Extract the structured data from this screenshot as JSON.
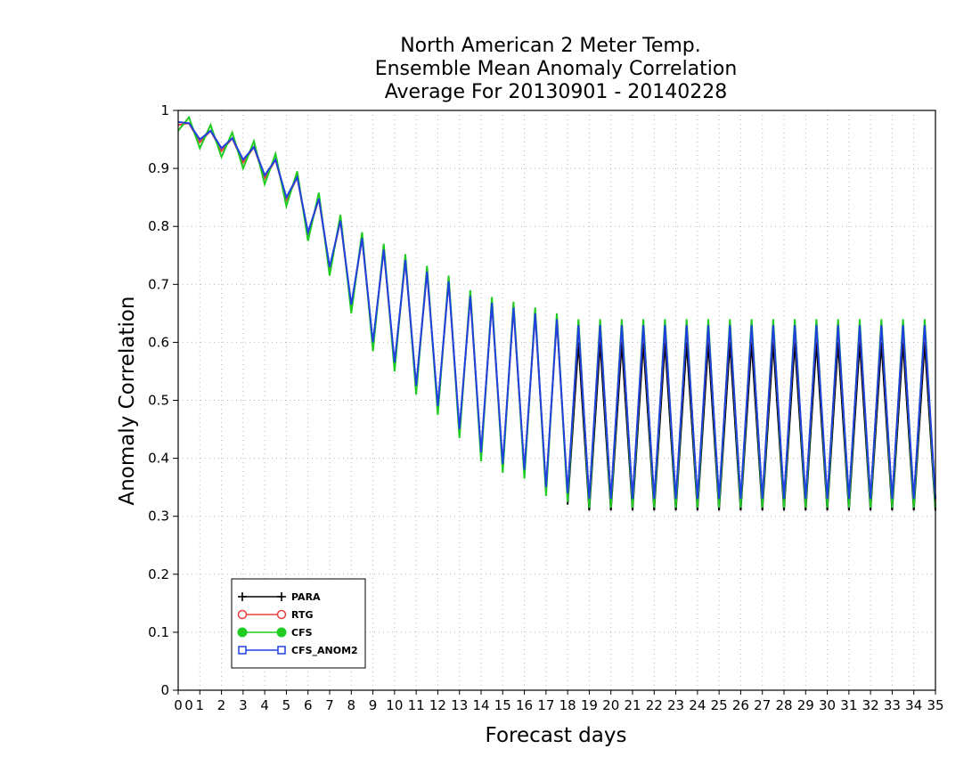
{
  "chart_data": {
    "type": "line",
    "title": [
      "North American 2 Meter Temp.",
      "Ensemble Mean Anomaly Correlation",
      "Average For 20130901 - 20140228"
    ],
    "xlabel": "Forecast days",
    "ylabel": "Anomaly Correlation",
    "xlim": [
      0,
      35
    ],
    "ylim": [
      0,
      1
    ],
    "x_ticks": [
      "0",
      "0",
      "1",
      "2",
      "3",
      "4",
      "5",
      "6",
      "7",
      "8",
      "9",
      "10",
      "11",
      "12",
      "13",
      "14",
      "15",
      "16",
      "17",
      "18",
      "19",
      "20",
      "21",
      "22",
      "23",
      "24",
      "25",
      "26",
      "27",
      "28",
      "29",
      "30",
      "31",
      "32",
      "33",
      "34",
      "35"
    ],
    "y_ticks": [
      "0",
      "0.1",
      "0.2",
      "0.3",
      "0.4",
      "0.5",
      "0.6",
      "0.7",
      "0.8",
      "0.9",
      "1"
    ],
    "grid": true,
    "legend_position": "bottom-left",
    "base_envelope": {
      "x": [
        0,
        0.5,
        1,
        1.5,
        2,
        2.5,
        3,
        3.5,
        4,
        4.5,
        5,
        5.5,
        6,
        6.5,
        7,
        7.5,
        8,
        8.5,
        9,
        9.5,
        10,
        10.5,
        11,
        11.5,
        12,
        12.5,
        13,
        13.5,
        14,
        14.5,
        15,
        15.5,
        16,
        16.5,
        17,
        17.5,
        18,
        18.5,
        19,
        19.5,
        20,
        20.5,
        21,
        21.5,
        22,
        22.5,
        23,
        23.5,
        24,
        24.5,
        25,
        25.5,
        26,
        26.5,
        27,
        27.5,
        28,
        28.5,
        29,
        29.5,
        30,
        30.5,
        31,
        31.5,
        32,
        32.5,
        33,
        33.5,
        34,
        34.5,
        35
      ],
      "y": [
        0.98,
        0.978,
        0.95,
        0.965,
        0.935,
        0.952,
        0.915,
        0.937,
        0.888,
        0.915,
        0.85,
        0.885,
        0.79,
        0.848,
        0.73,
        0.81,
        0.665,
        0.78,
        0.6,
        0.76,
        0.565,
        0.742,
        0.525,
        0.722,
        0.49,
        0.705,
        0.45,
        0.68,
        0.41,
        0.668,
        0.39,
        0.66,
        0.38,
        0.65,
        0.35,
        0.64,
        0.34,
        0.63,
        0.33,
        0.63,
        0.33,
        0.63,
        0.33,
        0.63,
        0.33,
        0.63,
        0.33,
        0.63,
        0.33,
        0.63,
        0.33,
        0.63,
        0.33,
        0.63,
        0.33,
        0.63,
        0.33,
        0.63,
        0.33,
        0.63,
        0.33,
        0.63,
        0.33,
        0.63,
        0.33,
        0.63,
        0.33,
        0.63,
        0.33,
        0.63,
        0.33
      ]
    },
    "series": [
      {
        "name": "PARA",
        "color": "#000000",
        "marker": "plus",
        "offsets_trough": -0.02,
        "offsets_peak": -0.03,
        "x_start": 18
      },
      {
        "name": "RTG",
        "color": "#e8403c",
        "marker": "circle-open",
        "offsets_trough": -0.005,
        "offsets_peak": 0.0,
        "x_start": 0
      },
      {
        "name": "CFS",
        "color": "#20cc20",
        "marker": "circle-filled",
        "offsets_trough": -0.015,
        "offsets_peak": 0.01,
        "x_start": 0
      },
      {
        "name": "CFS_ANOM2",
        "color": "#2040e0",
        "marker": "square-open",
        "offsets_trough": 0.0,
        "offsets_peak": 0.0,
        "x_start": 0
      }
    ]
  }
}
